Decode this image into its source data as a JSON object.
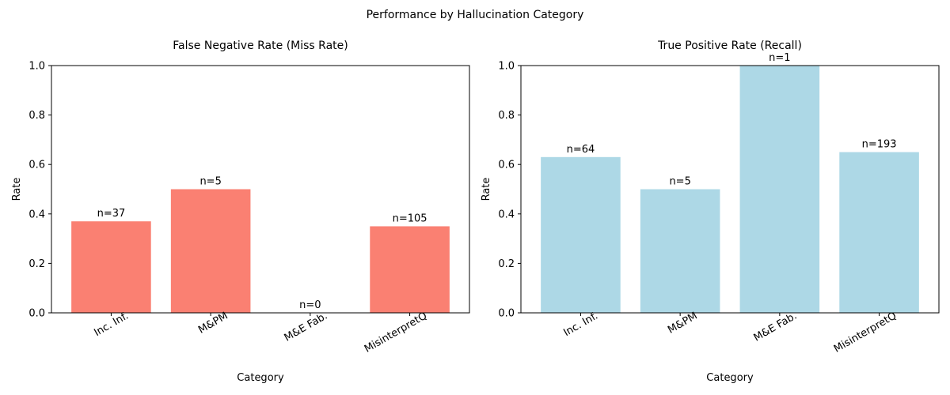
{
  "figure_title": "Performance by Hallucination Category",
  "chart_data": [
    {
      "type": "bar",
      "title": "False Negative Rate (Miss Rate)",
      "xlabel": "Category",
      "ylabel": "Rate",
      "categories": [
        "Inc. Inf.",
        "M&PM",
        "M&E Fab.",
        "MisinterpretQ"
      ],
      "values": [
        0.37,
        0.5,
        0.0,
        0.35
      ],
      "bar_labels": [
        "n=37",
        "n=5",
        "n=0",
        "n=105"
      ],
      "ylim": [
        0,
        1.0
      ],
      "yticks": [
        "0.0",
        "0.2",
        "0.4",
        "0.6",
        "0.8",
        "1.0"
      ],
      "color": "#fa8072",
      "grid": false
    },
    {
      "type": "bar",
      "title": "True Positive Rate (Recall)",
      "xlabel": "Category",
      "ylabel": "Rate",
      "categories": [
        "Inc. Inf.",
        "M&PM",
        "M&E Fab.",
        "MisinterpretQ"
      ],
      "values": [
        0.63,
        0.5,
        1.0,
        0.65
      ],
      "bar_labels": [
        "n=64",
        "n=5",
        "n=1",
        "n=193"
      ],
      "ylim": [
        0,
        1.0
      ],
      "yticks": [
        "0.0",
        "0.2",
        "0.4",
        "0.6",
        "0.8",
        "1.0"
      ],
      "color": "#add8e6",
      "grid": false
    }
  ]
}
